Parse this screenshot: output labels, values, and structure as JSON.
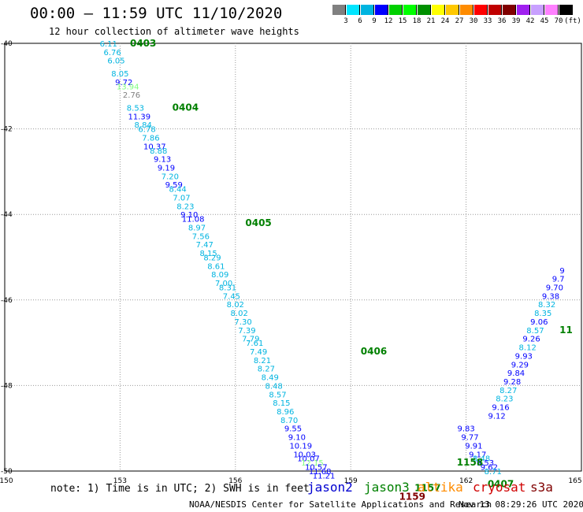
{
  "header": {
    "title": "00:00 – 11:59 UTC 11/10/2020",
    "subtitle": "12 hour collection of altimeter wave heights"
  },
  "colorbar": {
    "labels": [
      "3",
      "6",
      "9",
      "12",
      "15",
      "18",
      "21",
      "24",
      "27",
      "30",
      "33",
      "36",
      "39",
      "42",
      "45",
      "70",
      "(ft)"
    ],
    "colors": [
      "#808080",
      "#00e5ff",
      "#00b4e0",
      "#0000ff",
      "#00d000",
      "#00ff00",
      "#009000",
      "#ffff00",
      "#ffc800",
      "#ff8c00",
      "#ff0000",
      "#c00000",
      "#800000",
      "#a020f0",
      "#c8a0ff",
      "#ff80ff",
      "#000000"
    ]
  },
  "footer": {
    "note": "note: 1) Time is in UTC; 2) SWH is in feet",
    "satellites": [
      {
        "name": "jason2",
        "color": "#0000d0"
      },
      {
        "name": "jason3",
        "color": "#008000"
      },
      {
        "name": "altika",
        "color": "#ff8c00"
      },
      {
        "name": "cryosat",
        "color": "#d00000"
      },
      {
        "name": "s3a",
        "color": "#800000"
      }
    ],
    "credit": "NOAA/NESDIS Center for Satellite Applications and Research",
    "stamp": "Nov 13 08:29:26 UTC 2020"
  },
  "chart_data": {
    "type": "scatter",
    "x_ticks": [
      "150",
      "153",
      "156",
      "159",
      "162",
      "165"
    ],
    "y_ticks": [
      "-40",
      "-42",
      "-44",
      "-46",
      "-48",
      "-50"
    ],
    "xlim": [
      150,
      165
    ],
    "ylim": [
      -50,
      -40
    ],
    "grid": "dotted",
    "points": [
      {
        "lon": 152.7,
        "lat": -40.0,
        "v": "6.11",
        "c": "#00b4e0"
      },
      {
        "lon": 152.8,
        "lat": -40.2,
        "v": "6.76",
        "c": "#00b4e0"
      },
      {
        "lon": 152.9,
        "lat": -40.4,
        "v": "6.05",
        "c": "#00b4e0"
      },
      {
        "lon": 153.0,
        "lat": -40.7,
        "v": "8.05",
        "c": "#00b4e0"
      },
      {
        "lon": 153.1,
        "lat": -40.9,
        "v": "9.72",
        "c": "#0000ff"
      },
      {
        "lon": 153.2,
        "lat": -41.0,
        "v": "13.94",
        "c": "#80ff80"
      },
      {
        "lon": 153.3,
        "lat": -41.2,
        "v": "2.76",
        "c": "#808080"
      },
      {
        "lon": 153.4,
        "lat": -41.5,
        "v": "8.53",
        "c": "#00b4e0"
      },
      {
        "lon": 153.5,
        "lat": -41.7,
        "v": "11.39",
        "c": "#0000ff"
      },
      {
        "lon": 153.6,
        "lat": -41.9,
        "v": "8.84",
        "c": "#00b4e0"
      },
      {
        "lon": 153.7,
        "lat": -42.0,
        "v": "6.78",
        "c": "#00b4e0"
      },
      {
        "lon": 153.8,
        "lat": -42.2,
        "v": "7.86",
        "c": "#00b4e0"
      },
      {
        "lon": 153.9,
        "lat": -42.4,
        "v": "10.37",
        "c": "#0000ff"
      },
      {
        "lon": 154.0,
        "lat": -42.5,
        "v": "8.88",
        "c": "#00b4e0"
      },
      {
        "lon": 154.1,
        "lat": -42.7,
        "v": "9.13",
        "c": "#0000ff"
      },
      {
        "lon": 154.2,
        "lat": -42.9,
        "v": "9.19",
        "c": "#0000ff"
      },
      {
        "lon": 154.3,
        "lat": -43.1,
        "v": "7.20",
        "c": "#00b4e0"
      },
      {
        "lon": 154.4,
        "lat": -43.3,
        "v": "9.59",
        "c": "#0000ff"
      },
      {
        "lon": 154.5,
        "lat": -43.4,
        "v": "8.44",
        "c": "#00b4e0"
      },
      {
        "lon": 154.6,
        "lat": -43.6,
        "v": "7.07",
        "c": "#00b4e0"
      },
      {
        "lon": 154.7,
        "lat": -43.8,
        "v": "8.23",
        "c": "#00b4e0"
      },
      {
        "lon": 154.8,
        "lat": -44.0,
        "v": "9.10",
        "c": "#0000ff"
      },
      {
        "lon": 154.9,
        "lat": -44.1,
        "v": "11.08",
        "c": "#0000ff"
      },
      {
        "lon": 155.0,
        "lat": -44.3,
        "v": "8.97",
        "c": "#00b4e0"
      },
      {
        "lon": 155.1,
        "lat": -44.5,
        "v": "7.56",
        "c": "#00b4e0"
      },
      {
        "lon": 155.2,
        "lat": -44.7,
        "v": "7.47",
        "c": "#00b4e0"
      },
      {
        "lon": 155.3,
        "lat": -44.9,
        "v": "8.15",
        "c": "#00b4e0"
      },
      {
        "lon": 155.4,
        "lat": -45.0,
        "v": "8.29",
        "c": "#00b4e0"
      },
      {
        "lon": 155.5,
        "lat": -45.2,
        "v": "8.61",
        "c": "#00b4e0"
      },
      {
        "lon": 155.6,
        "lat": -45.4,
        "v": "8.09",
        "c": "#00b4e0"
      },
      {
        "lon": 155.7,
        "lat": -45.6,
        "v": "7.00",
        "c": "#00b4e0"
      },
      {
        "lon": 155.8,
        "lat": -45.7,
        "v": "8.31",
        "c": "#00b4e0"
      },
      {
        "lon": 155.9,
        "lat": -45.9,
        "v": "7.45",
        "c": "#00b4e0"
      },
      {
        "lon": 156.0,
        "lat": -46.1,
        "v": "8.02",
        "c": "#00b4e0"
      },
      {
        "lon": 156.1,
        "lat": -46.3,
        "v": "8.02",
        "c": "#00b4e0"
      },
      {
        "lon": 156.2,
        "lat": -46.5,
        "v": "7.30",
        "c": "#00b4e0"
      },
      {
        "lon": 156.3,
        "lat": -46.7,
        "v": "7.39",
        "c": "#00b4e0"
      },
      {
        "lon": 156.4,
        "lat": -46.9,
        "v": "7.79",
        "c": "#00b4e0"
      },
      {
        "lon": 156.5,
        "lat": -47.0,
        "v": "7.61",
        "c": "#00b4e0"
      },
      {
        "lon": 156.6,
        "lat": -47.2,
        "v": "7.49",
        "c": "#00b4e0"
      },
      {
        "lon": 156.7,
        "lat": -47.4,
        "v": "8.21",
        "c": "#00b4e0"
      },
      {
        "lon": 156.8,
        "lat": -47.6,
        "v": "8.27",
        "c": "#00b4e0"
      },
      {
        "lon": 156.9,
        "lat": -47.8,
        "v": "8.49",
        "c": "#00b4e0"
      },
      {
        "lon": 157.0,
        "lat": -48.0,
        "v": "8.48",
        "c": "#00b4e0"
      },
      {
        "lon": 157.1,
        "lat": -48.2,
        "v": "8.57",
        "c": "#00b4e0"
      },
      {
        "lon": 157.2,
        "lat": -48.4,
        "v": "8.15",
        "c": "#00b4e0"
      },
      {
        "lon": 157.3,
        "lat": -48.6,
        "v": "8.96",
        "c": "#00b4e0"
      },
      {
        "lon": 157.4,
        "lat": -48.8,
        "v": "8.70",
        "c": "#00b4e0"
      },
      {
        "lon": 157.5,
        "lat": -49.0,
        "v": "9.55",
        "c": "#0000ff"
      },
      {
        "lon": 157.6,
        "lat": -49.2,
        "v": "9.10",
        "c": "#0000ff"
      },
      {
        "lon": 157.7,
        "lat": -49.4,
        "v": "10.19",
        "c": "#0000ff"
      },
      {
        "lon": 157.8,
        "lat": -49.6,
        "v": "10.03",
        "c": "#0000ff"
      },
      {
        "lon": 157.9,
        "lat": -49.7,
        "v": "10.07",
        "c": "#0000ff"
      },
      {
        "lon": 158.0,
        "lat": -49.8,
        "v": "12.15",
        "c": "#80ff80"
      },
      {
        "lon": 158.1,
        "lat": -49.9,
        "v": "10.57",
        "c": "#0000ff"
      },
      {
        "lon": 158.2,
        "lat": -50.0,
        "v": "11.68",
        "c": "#0000ff"
      },
      {
        "lon": 158.3,
        "lat": -50.1,
        "v": "11.21",
        "c": "#0000ff"
      },
      {
        "lon": 162.0,
        "lat": -49.0,
        "v": "9.83",
        "c": "#0000ff"
      },
      {
        "lon": 162.1,
        "lat": -49.2,
        "v": "9.77",
        "c": "#0000ff"
      },
      {
        "lon": 162.2,
        "lat": -49.4,
        "v": "9.91",
        "c": "#0000ff"
      },
      {
        "lon": 162.3,
        "lat": -49.6,
        "v": "9.17",
        "c": "#0000ff"
      },
      {
        "lon": 162.4,
        "lat": -49.7,
        "v": "8.48",
        "c": "#00b4e0"
      },
      {
        "lon": 162.5,
        "lat": -49.8,
        "v": "9.53",
        "c": "#0000ff"
      },
      {
        "lon": 162.6,
        "lat": -49.9,
        "v": "9.62",
        "c": "#0000ff"
      },
      {
        "lon": 162.7,
        "lat": -50.0,
        "v": "8.71",
        "c": "#00b4e0"
      },
      {
        "lon": 162.8,
        "lat": -48.7,
        "v": "9.12",
        "c": "#0000ff"
      },
      {
        "lon": 162.9,
        "lat": -48.5,
        "v": "9.16",
        "c": "#0000ff"
      },
      {
        "lon": 163.0,
        "lat": -48.3,
        "v": "8.23",
        "c": "#00b4e0"
      },
      {
        "lon": 163.1,
        "lat": -48.1,
        "v": "8.27",
        "c": "#00b4e0"
      },
      {
        "lon": 163.2,
        "lat": -47.9,
        "v": "9.28",
        "c": "#0000ff"
      },
      {
        "lon": 163.3,
        "lat": -47.7,
        "v": "9.84",
        "c": "#0000ff"
      },
      {
        "lon": 163.4,
        "lat": -47.5,
        "v": "9.29",
        "c": "#0000ff"
      },
      {
        "lon": 163.5,
        "lat": -47.3,
        "v": "9.93",
        "c": "#0000ff"
      },
      {
        "lon": 163.6,
        "lat": -47.1,
        "v": "8.12",
        "c": "#00b4e0"
      },
      {
        "lon": 163.7,
        "lat": -46.9,
        "v": "9.26",
        "c": "#0000ff"
      },
      {
        "lon": 163.8,
        "lat": -46.7,
        "v": "8.57",
        "c": "#00b4e0"
      },
      {
        "lon": 163.9,
        "lat": -46.5,
        "v": "9.06",
        "c": "#0000ff"
      },
      {
        "lon": 164.0,
        "lat": -46.3,
        "v": "8.35",
        "c": "#00b4e0"
      },
      {
        "lon": 164.1,
        "lat": -46.1,
        "v": "8.32",
        "c": "#00b4e0"
      },
      {
        "lon": 164.2,
        "lat": -45.9,
        "v": "9.38",
        "c": "#0000ff"
      },
      {
        "lon": 164.3,
        "lat": -45.7,
        "v": "9.70",
        "c": "#0000ff"
      },
      {
        "lon": 164.4,
        "lat": -45.5,
        "v": "9.7",
        "c": "#0000ff"
      },
      {
        "lon": 164.5,
        "lat": -45.3,
        "v": "9",
        "c": "#0000ff"
      }
    ],
    "time_labels": [
      {
        "lon": 153.6,
        "lat": -40.0,
        "t": "0403",
        "c": "#008000"
      },
      {
        "lon": 154.7,
        "lat": -41.5,
        "t": "0404",
        "c": "#008000"
      },
      {
        "lon": 156.6,
        "lat": -44.2,
        "t": "0405",
        "c": "#008000"
      },
      {
        "lon": 159.6,
        "lat": -47.2,
        "t": "0406",
        "c": "#008000"
      },
      {
        "lon": 162.1,
        "lat": -49.8,
        "t": "1158",
        "c": "#008000"
      },
      {
        "lon": 162.9,
        "lat": -50.3,
        "t": "0407",
        "c": "#008000"
      },
      {
        "lon": 161.0,
        "lat": -50.4,
        "t": "1157",
        "c": "#008000"
      },
      {
        "lon": 160.6,
        "lat": -50.6,
        "t": "1159",
        "c": "#800000"
      },
      {
        "lon": 164.6,
        "lat": -46.7,
        "t": "11",
        "c": "#008000"
      }
    ]
  }
}
